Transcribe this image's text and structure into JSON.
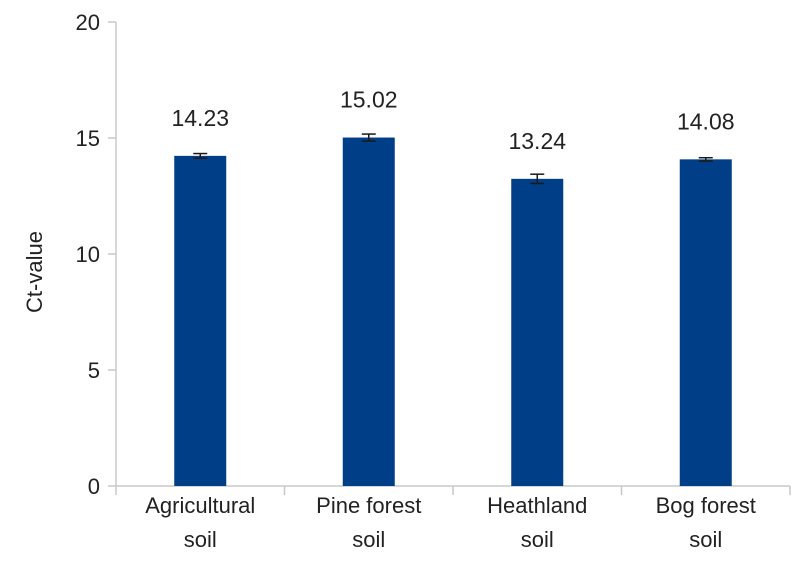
{
  "chart_data": {
    "type": "bar",
    "categories": [
      [
        "Agricultural",
        "soil"
      ],
      [
        "Pine forest",
        "soil"
      ],
      [
        "Heathland",
        "soil"
      ],
      [
        "Bog forest",
        "soil"
      ]
    ],
    "values": [
      14.23,
      15.02,
      13.24,
      14.08
    ],
    "data_labels": [
      "14.23",
      "15.02",
      "13.24",
      "14.08"
    ],
    "error": [
      0.1,
      0.15,
      0.2,
      0.07
    ],
    "ylabel": "Ct-value",
    "xlabel": "",
    "title": "",
    "ylim": [
      0,
      20
    ],
    "yticks": [
      0,
      5,
      10,
      15,
      20
    ],
    "grid": false,
    "legend": "none",
    "colors": {
      "bar": "#003f87",
      "axis": "#c8c8c8",
      "error_bar": "#1a1a1a"
    }
  }
}
